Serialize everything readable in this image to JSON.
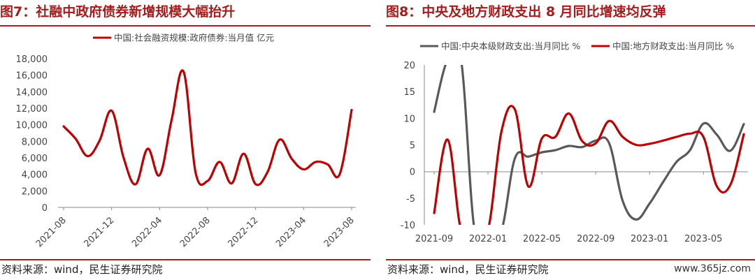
{
  "left": {
    "title": "图7：社融中政府债券新增规模大幅抬升",
    "source": "资料来源：wind，民生证券研究院",
    "chart_data": {
      "type": "line",
      "title": "图7：社融中政府债券新增规模大幅抬升",
      "ylim": [
        0,
        18000
      ],
      "y_ticks": [
        "0",
        "2,000",
        "4,000",
        "6,000",
        "8,000",
        "10,000",
        "12,000",
        "14,000",
        "16,000",
        "18,000"
      ],
      "x_ticks": [
        "2021-08",
        "2021-12",
        "2022-04",
        "2022-08",
        "2022-12",
        "2023-04",
        "2023-08"
      ],
      "categories": [
        "2021-08",
        "2021-09",
        "2021-10",
        "2021-11",
        "2021-12",
        "2022-01",
        "2022-02",
        "2022-03",
        "2022-04",
        "2022-05",
        "2022-06",
        "2022-07",
        "2022-08",
        "2022-09",
        "2022-10",
        "2022-11",
        "2022-12",
        "2023-01",
        "2023-02",
        "2023-03",
        "2023-04",
        "2023-05",
        "2023-06",
        "2023-07",
        "2023-08"
      ],
      "series": [
        {
          "name": "中国:社会融资规模:政府债券:当月值 亿元",
          "color": "#c00000",
          "values": [
            9800,
            8300,
            6200,
            8100,
            11700,
            6000,
            2800,
            7100,
            3900,
            10600,
            16400,
            4200,
            3200,
            5500,
            2900,
            6500,
            2800,
            4300,
            8200,
            5900,
            4600,
            5500,
            5200,
            4000,
            11800
          ]
        }
      ],
      "legend": "top",
      "grid": false
    }
  },
  "right": {
    "title": "图8：中央及地方财政支出 8 月同比增速均反弹",
    "source": "资料来源：wind，民生证券研究院",
    "watermark": "www.365jz.com",
    "chart_data": {
      "type": "line",
      "title": "图8：中央及地方财政支出 8 月同比增速均反弹",
      "ylim": [
        -10,
        20
      ],
      "y_ticks": [
        "-10",
        "-5",
        "0",
        "5",
        "10",
        "15",
        "20"
      ],
      "x_ticks": [
        "2021-09",
        "2022-01",
        "2022-05",
        "2022-09",
        "2023-01",
        "2023-05"
      ],
      "categories": [
        "2021-09",
        "2021-10",
        "2021-11",
        "2021-12",
        "2022-01",
        "2022-02",
        "2022-03",
        "2022-04",
        "2022-05",
        "2022-06",
        "2022-07",
        "2022-08",
        "2022-09",
        "2022-10",
        "2022-11",
        "2022-12",
        "2023-01",
        "2023-02",
        "2023-03",
        "2023-04",
        "2023-05",
        "2023-06",
        "2023-07",
        "2023-08"
      ],
      "series": [
        {
          "name": "中国:中央本级财政支出:当月同比 %",
          "color": "#595959",
          "values": [
            11.2,
            21.0,
            21.0,
            -11.0,
            -11.0,
            -11.0,
            2.5,
            2.8,
            3.6,
            4.0,
            4.8,
            4.6,
            5.8,
            5.3,
            -5.5,
            -9.0,
            -6.0,
            -2.0,
            1.8,
            4.0,
            9.0,
            6.9,
            3.9,
            8.9
          ]
        },
        {
          "name": "中国:地方财政支出:当月同比 %",
          "color": "#c00000",
          "values": [
            -7.8,
            6.0,
            -11.0,
            -11.0,
            -11.0,
            7.5,
            11.6,
            -2.8,
            6.2,
            6.5,
            10.9,
            5.7,
            5.3,
            9.5,
            6.5,
            5.0,
            5.2,
            5.8,
            6.5,
            7.1,
            6.5,
            -2.8,
            -2.5,
            7.0
          ]
        }
      ],
      "legend": "top",
      "grid": false
    }
  }
}
